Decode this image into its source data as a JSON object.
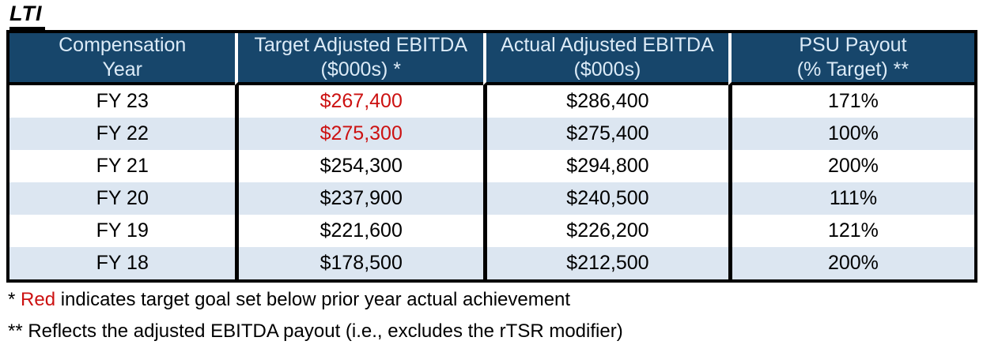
{
  "title": "LTI",
  "colors": {
    "header_bg": "#17466B",
    "header_text": "#DCEBF7",
    "alt_row_bg": "#DCE6F1",
    "red_text": "#CC1111",
    "border": "#000000"
  },
  "table": {
    "headers": [
      {
        "line1": "Compensation",
        "line2": "Year"
      },
      {
        "line1": "Target Adjusted EBITDA",
        "line2": "($000s) *"
      },
      {
        "line1": "Actual Adjusted EBITDA",
        "line2": "($000s)"
      },
      {
        "line1": "PSU Payout",
        "line2": "(% Target) **"
      }
    ],
    "rows": [
      {
        "year": "FY 23",
        "target": "$267,400",
        "target_red": true,
        "actual": "$286,400",
        "payout": "171%"
      },
      {
        "year": "FY 22",
        "target": "$275,300",
        "target_red": true,
        "actual": "$275,400",
        "payout": "100%"
      },
      {
        "year": "FY 21",
        "target": "$254,300",
        "target_red": false,
        "actual": "$294,800",
        "payout": "200%"
      },
      {
        "year": "FY 20",
        "target": "$237,900",
        "target_red": false,
        "actual": "$240,500",
        "payout": "111%"
      },
      {
        "year": "FY 19",
        "target": "$221,600",
        "target_red": false,
        "actual": "$226,200",
        "payout": "121%"
      },
      {
        "year": "FY 18",
        "target": "$178,500",
        "target_red": false,
        "actual": "$212,500",
        "payout": "200%"
      }
    ]
  },
  "footnotes": {
    "red_note": {
      "prefix": "* ",
      "red_word": "Red",
      "rest": " indicates target goal set below prior year actual achievement"
    },
    "rtsr_note": "** Reflects the adjusted EBITDA payout (i.e., excludes the rTSR modifier)"
  }
}
